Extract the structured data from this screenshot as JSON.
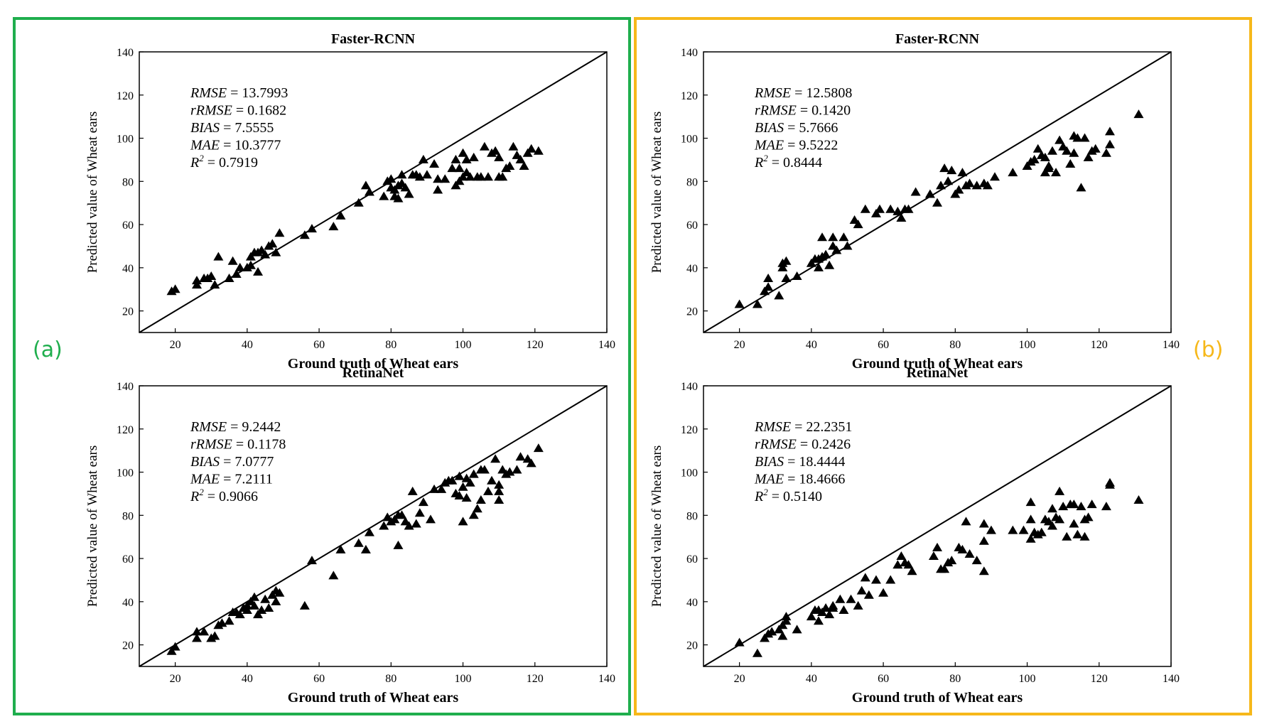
{
  "panels": [
    {
      "label": "(a)",
      "color": "#1fae4d"
    },
    {
      "label": "(b)",
      "color": "#f6b81a"
    }
  ],
  "chart_data": [
    {
      "type": "scatter",
      "panel": "(a)",
      "title": "Faster-RCNN",
      "xlabel": "Ground truth of Wheat ears",
      "ylabel": "Predicted value of Wheat ears",
      "xlim": [
        10,
        140
      ],
      "ylim": [
        10,
        140
      ],
      "xticks": [
        20,
        40,
        60,
        80,
        100,
        120,
        140
      ],
      "yticks": [
        20,
        40,
        60,
        80,
        100,
        120,
        140
      ],
      "reference_line": "1:1",
      "marker": "triangle",
      "stats": [
        {
          "name": "RMSE",
          "value": "13.7993"
        },
        {
          "name": "rRMSE",
          "value": "0.1682"
        },
        {
          "name": "BIAS",
          "value": "7.5555"
        },
        {
          "name": "MAE",
          "value": "10.3777"
        },
        {
          "name": "R",
          "sup": "2",
          "value": "0.7919"
        }
      ],
      "points": [
        [
          19,
          29
        ],
        [
          20,
          30
        ],
        [
          26,
          32
        ],
        [
          26,
          34
        ],
        [
          28,
          35
        ],
        [
          29,
          35
        ],
        [
          30,
          36
        ],
        [
          31,
          32
        ],
        [
          32,
          45
        ],
        [
          35,
          35
        ],
        [
          36,
          43
        ],
        [
          37,
          37
        ],
        [
          38,
          40
        ],
        [
          40,
          40
        ],
        [
          41,
          41
        ],
        [
          41,
          45
        ],
        [
          42,
          47
        ],
        [
          43,
          47
        ],
        [
          43,
          38
        ],
        [
          44,
          48
        ],
        [
          45,
          46
        ],
        [
          46,
          50
        ],
        [
          47,
          51
        ],
        [
          48,
          47
        ],
        [
          49,
          56
        ],
        [
          56,
          55
        ],
        [
          58,
          58
        ],
        [
          64,
          59
        ],
        [
          66,
          64
        ],
        [
          71,
          70
        ],
        [
          73,
          78
        ],
        [
          74,
          75
        ],
        [
          78,
          73
        ],
        [
          79,
          80
        ],
        [
          80,
          77
        ],
        [
          80,
          81
        ],
        [
          81,
          73
        ],
        [
          81,
          76
        ],
        [
          82,
          72
        ],
        [
          82,
          78
        ],
        [
          83,
          79
        ],
        [
          83,
          83
        ],
        [
          84,
          77
        ],
        [
          85,
          74
        ],
        [
          86,
          83
        ],
        [
          87,
          83
        ],
        [
          88,
          82
        ],
        [
          89,
          90
        ],
        [
          90,
          83
        ],
        [
          92,
          88
        ],
        [
          93,
          76
        ],
        [
          93,
          81
        ],
        [
          95,
          81
        ],
        [
          97,
          86
        ],
        [
          98,
          90
        ],
        [
          98,
          78
        ],
        [
          99,
          86
        ],
        [
          99,
          80
        ],
        [
          100,
          93
        ],
        [
          100,
          82
        ],
        [
          101,
          90
        ],
        [
          101,
          84
        ],
        [
          102,
          82
        ],
        [
          103,
          91
        ],
        [
          104,
          82
        ],
        [
          105,
          82
        ],
        [
          106,
          96
        ],
        [
          107,
          82
        ],
        [
          108,
          93
        ],
        [
          109,
          94
        ],
        [
          110,
          91
        ],
        [
          110,
          82
        ],
        [
          111,
          82
        ],
        [
          112,
          86
        ],
        [
          113,
          87
        ],
        [
          114,
          96
        ],
        [
          115,
          92
        ],
        [
          116,
          90
        ],
        [
          117,
          87
        ],
        [
          118,
          93
        ],
        [
          119,
          95
        ],
        [
          121,
          94
        ]
      ]
    },
    {
      "type": "scatter",
      "panel": "(b)",
      "title": "Faster-RCNN",
      "xlabel": "Ground truth of Wheat ears",
      "ylabel": "Predicted value of Wheat ears",
      "xlim": [
        10,
        140
      ],
      "ylim": [
        10,
        140
      ],
      "xticks": [
        20,
        40,
        60,
        80,
        100,
        120,
        140
      ],
      "yticks": [
        20,
        40,
        60,
        80,
        100,
        120,
        140
      ],
      "reference_line": "1:1",
      "marker": "triangle",
      "stats": [
        {
          "name": "RMSE",
          "value": "12.5808"
        },
        {
          "name": "rRMSE",
          "value": "0.1420"
        },
        {
          "name": "BIAS",
          "value": "5.7666"
        },
        {
          "name": "MAE",
          "value": "9.5222"
        },
        {
          "name": "R",
          "sup": "2",
          "value": "0.8444"
        }
      ],
      "points": [
        [
          20,
          23
        ],
        [
          25,
          23
        ],
        [
          27,
          29
        ],
        [
          28,
          31
        ],
        [
          28,
          35
        ],
        [
          31,
          27
        ],
        [
          32,
          40
        ],
        [
          32,
          42
        ],
        [
          33,
          43
        ],
        [
          33,
          35
        ],
        [
          36,
          36
        ],
        [
          40,
          42
        ],
        [
          41,
          44
        ],
        [
          42,
          40
        ],
        [
          42,
          44
        ],
        [
          43,
          45
        ],
        [
          43,
          54
        ],
        [
          44,
          46
        ],
        [
          45,
          41
        ],
        [
          46,
          50
        ],
        [
          46,
          54
        ],
        [
          47,
          48
        ],
        [
          49,
          54
        ],
        [
          50,
          50
        ],
        [
          52,
          62
        ],
        [
          53,
          60
        ],
        [
          55,
          67
        ],
        [
          58,
          65
        ],
        [
          59,
          67
        ],
        [
          62,
          67
        ],
        [
          64,
          66
        ],
        [
          65,
          63
        ],
        [
          66,
          67
        ],
        [
          67,
          67
        ],
        [
          69,
          75
        ],
        [
          73,
          74
        ],
        [
          75,
          70
        ],
        [
          76,
          78
        ],
        [
          77,
          86
        ],
        [
          78,
          80
        ],
        [
          79,
          85
        ],
        [
          80,
          74
        ],
        [
          81,
          76
        ],
        [
          82,
          84
        ],
        [
          83,
          78
        ],
        [
          84,
          79
        ],
        [
          86,
          78
        ],
        [
          88,
          79
        ],
        [
          89,
          78
        ],
        [
          91,
          82
        ],
        [
          96,
          84
        ],
        [
          100,
          87
        ],
        [
          101,
          89
        ],
        [
          102,
          90
        ],
        [
          103,
          95
        ],
        [
          104,
          92
        ],
        [
          105,
          91
        ],
        [
          105,
          84
        ],
        [
          106,
          87
        ],
        [
          106,
          86
        ],
        [
          107,
          94
        ],
        [
          108,
          84
        ],
        [
          109,
          99
        ],
        [
          110,
          96
        ],
        [
          111,
          94
        ],
        [
          112,
          88
        ],
        [
          113,
          101
        ],
        [
          113,
          93
        ],
        [
          114,
          100
        ],
        [
          115,
          77
        ],
        [
          116,
          100
        ],
        [
          117,
          91
        ],
        [
          118,
          94
        ],
        [
          119,
          95
        ],
        [
          122,
          93
        ],
        [
          123,
          97
        ],
        [
          123,
          103
        ],
        [
          131,
          111
        ]
      ]
    },
    {
      "type": "scatter",
      "panel": "(a)",
      "title": "RetinaNet",
      "xlabel": "Ground truth of Wheat ears",
      "ylabel": "Predicted value of Wheat ears",
      "xlim": [
        10,
        140
      ],
      "ylim": [
        10,
        140
      ],
      "xticks": [
        20,
        40,
        60,
        80,
        100,
        120,
        140
      ],
      "yticks": [
        20,
        40,
        60,
        80,
        100,
        120,
        140
      ],
      "reference_line": "1:1",
      "marker": "triangle",
      "stats": [
        {
          "name": "RMSE",
          "value": "9.2442"
        },
        {
          "name": "rRMSE",
          "value": "0.1178"
        },
        {
          "name": "BIAS",
          "value": "7.0777"
        },
        {
          "name": "MAE",
          "value": "7.2111"
        },
        {
          "name": "R",
          "sup": "2",
          "value": "0.9066"
        }
      ],
      "points": [
        [
          19,
          17
        ],
        [
          20,
          19
        ],
        [
          26,
          23
        ],
        [
          26,
          26
        ],
        [
          28,
          26
        ],
        [
          30,
          23
        ],
        [
          31,
          24
        ],
        [
          32,
          29
        ],
        [
          33,
          30
        ],
        [
          35,
          31
        ],
        [
          36,
          35
        ],
        [
          37,
          35
        ],
        [
          38,
          34
        ],
        [
          39,
          37
        ],
        [
          40,
          36
        ],
        [
          40,
          38
        ],
        [
          41,
          40
        ],
        [
          42,
          42
        ],
        [
          42,
          38
        ],
        [
          43,
          34
        ],
        [
          44,
          36
        ],
        [
          45,
          41
        ],
        [
          46,
          37
        ],
        [
          47,
          43
        ],
        [
          48,
          40
        ],
        [
          48,
          45
        ],
        [
          49,
          44
        ],
        [
          56,
          38
        ],
        [
          58,
          59
        ],
        [
          64,
          52
        ],
        [
          66,
          64
        ],
        [
          71,
          67
        ],
        [
          73,
          64
        ],
        [
          74,
          72
        ],
        [
          78,
          75
        ],
        [
          79,
          79
        ],
        [
          80,
          77
        ],
        [
          81,
          78
        ],
        [
          82,
          66
        ],
        [
          82,
          80
        ],
        [
          83,
          80
        ],
        [
          84,
          77
        ],
        [
          85,
          75
        ],
        [
          86,
          91
        ],
        [
          87,
          76
        ],
        [
          88,
          81
        ],
        [
          89,
          86
        ],
        [
          91,
          78
        ],
        [
          92,
          92
        ],
        [
          94,
          92
        ],
        [
          95,
          95
        ],
        [
          96,
          96
        ],
        [
          97,
          96
        ],
        [
          98,
          90
        ],
        [
          99,
          98
        ],
        [
          99,
          89
        ],
        [
          100,
          77
        ],
        [
          100,
          93
        ],
        [
          101,
          97
        ],
        [
          101,
          88
        ],
        [
          102,
          95
        ],
        [
          103,
          80
        ],
        [
          103,
          99
        ],
        [
          104,
          83
        ],
        [
          105,
          87
        ],
        [
          105,
          101
        ],
        [
          106,
          101
        ],
        [
          107,
          91
        ],
        [
          108,
          96
        ],
        [
          109,
          106
        ],
        [
          110,
          91
        ],
        [
          110,
          87
        ],
        [
          110,
          94
        ],
        [
          111,
          101
        ],
        [
          112,
          99
        ],
        [
          113,
          100
        ],
        [
          115,
          101
        ],
        [
          116,
          107
        ],
        [
          118,
          106
        ],
        [
          119,
          104
        ],
        [
          121,
          111
        ]
      ]
    },
    {
      "type": "scatter",
      "panel": "(b)",
      "title": "RetinaNet",
      "xlabel": "Ground truth of Wheat ears",
      "ylabel": "Predicted value of Wheat ears",
      "xlim": [
        10,
        140
      ],
      "ylim": [
        10,
        140
      ],
      "xticks": [
        20,
        40,
        60,
        80,
        100,
        120,
        140
      ],
      "yticks": [
        20,
        40,
        60,
        80,
        100,
        120,
        140
      ],
      "reference_line": "1:1",
      "marker": "triangle",
      "stats": [
        {
          "name": "RMSE",
          "value": "22.2351"
        },
        {
          "name": "rRMSE",
          "value": "0.2426"
        },
        {
          "name": "BIAS",
          "value": "18.4444"
        },
        {
          "name": "MAE",
          "value": "18.4666"
        },
        {
          "name": "R",
          "sup": "2",
          "value": "0.5140"
        }
      ],
      "points": [
        [
          20,
          21
        ],
        [
          25,
          16
        ],
        [
          27,
          23
        ],
        [
          28,
          25
        ],
        [
          29,
          26
        ],
        [
          31,
          27
        ],
        [
          32,
          24
        ],
        [
          32,
          29
        ],
        [
          33,
          31
        ],
        [
          33,
          33
        ],
        [
          36,
          27
        ],
        [
          40,
          33
        ],
        [
          41,
          36
        ],
        [
          42,
          31
        ],
        [
          42,
          36
        ],
        [
          43,
          35
        ],
        [
          44,
          37
        ],
        [
          45,
          34
        ],
        [
          46,
          38
        ],
        [
          46,
          37
        ],
        [
          48,
          41
        ],
        [
          49,
          36
        ],
        [
          51,
          41
        ],
        [
          53,
          38
        ],
        [
          54,
          45
        ],
        [
          55,
          51
        ],
        [
          56,
          43
        ],
        [
          58,
          50
        ],
        [
          60,
          44
        ],
        [
          62,
          50
        ],
        [
          64,
          57
        ],
        [
          65,
          61
        ],
        [
          66,
          58
        ],
        [
          67,
          57
        ],
        [
          68,
          54
        ],
        [
          74,
          61
        ],
        [
          75,
          65
        ],
        [
          76,
          55
        ],
        [
          77,
          55
        ],
        [
          78,
          58
        ],
        [
          79,
          59
        ],
        [
          81,
          65
        ],
        [
          82,
          64
        ],
        [
          83,
          77
        ],
        [
          84,
          62
        ],
        [
          86,
          59
        ],
        [
          88,
          54
        ],
        [
          88,
          68
        ],
        [
          88,
          76
        ],
        [
          90,
          73
        ],
        [
          96,
          73
        ],
        [
          99,
          73
        ],
        [
          101,
          86
        ],
        [
          101,
          69
        ],
        [
          101,
          78
        ],
        [
          102,
          72
        ],
        [
          103,
          71
        ],
        [
          104,
          72
        ],
        [
          105,
          78
        ],
        [
          106,
          77
        ],
        [
          107,
          83
        ],
        [
          107,
          75
        ],
        [
          108,
          79
        ],
        [
          109,
          91
        ],
        [
          109,
          78
        ],
        [
          110,
          84
        ],
        [
          111,
          70
        ],
        [
          112,
          85
        ],
        [
          113,
          76
        ],
        [
          113,
          85
        ],
        [
          114,
          71
        ],
        [
          115,
          84
        ],
        [
          116,
          70
        ],
        [
          116,
          78
        ],
        [
          117,
          79
        ],
        [
          118,
          85
        ],
        [
          122,
          84
        ],
        [
          123,
          95
        ],
        [
          123,
          94
        ],
        [
          131,
          87
        ]
      ]
    }
  ]
}
